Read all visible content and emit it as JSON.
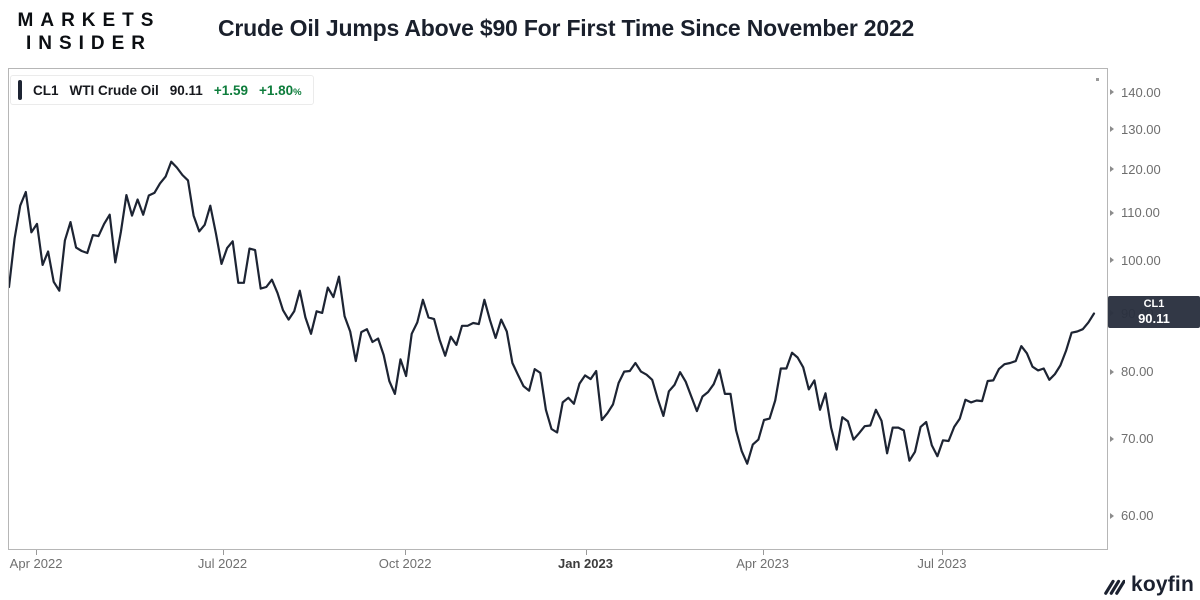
{
  "header": {
    "logo_line1": "MARKETS",
    "logo_line2": "INSIDER",
    "title": "Crude Oil Jumps Above $90 For First Time Since November 2022"
  },
  "legend": {
    "symbol": "CL1",
    "name": "WTI Crude Oil",
    "last": "90.11",
    "change": "+1.59",
    "change_pct": "+1.80",
    "pct_sign": "%",
    "positive_color": "#0e7d3c"
  },
  "price_badge": {
    "symbol": "CL1",
    "price": "90.11"
  },
  "watermark": {
    "text": "koyfin"
  },
  "chart_data": {
    "type": "line",
    "title": "CL1 WTI Crude Oil front-month price",
    "y_scale": "log",
    "ylim": [
      56.0,
      147.0
    ],
    "grid": false,
    "line_color": "#1d2433",
    "axis_text_color": "#6e6e6e",
    "y_ticks": [
      {
        "label": "140.00",
        "value": 140
      },
      {
        "label": "130.00",
        "value": 130
      },
      {
        "label": "120.00",
        "value": 120
      },
      {
        "label": "110.00",
        "value": 110
      },
      {
        "label": "100.00",
        "value": 100
      },
      {
        "label": "90.00",
        "value": 90
      },
      {
        "label": "80.00",
        "value": 80
      },
      {
        "label": "70.00",
        "value": 70
      },
      {
        "label": "60.00",
        "value": 60
      }
    ],
    "x_ticks": [
      {
        "label": "Apr 2022",
        "pos": 0.0255,
        "bold": false
      },
      {
        "label": "Jul 2022",
        "pos": 0.195,
        "bold": false
      },
      {
        "label": "Oct 2022",
        "pos": 0.361,
        "bold": false
      },
      {
        "label": "Jan 2023",
        "pos": 0.525,
        "bold": true
      },
      {
        "label": "Apr 2023",
        "pos": 0.686,
        "bold": false
      },
      {
        "label": "Jul 2023",
        "pos": 0.849,
        "bold": false
      }
    ],
    "last_price": 90.11,
    "series": [
      {
        "name": "CL1 WTI Crude Oil",
        "values": [
          95.0,
          104.7,
          111.8,
          114.9,
          106.0,
          107.8,
          99.3,
          102.0,
          96.0,
          94.3,
          104.3,
          108.2,
          102.8,
          102.1,
          101.7,
          105.4,
          105.2,
          107.8,
          109.8,
          99.8,
          106.1,
          114.2,
          109.6,
          113.2,
          109.8,
          114.1,
          114.7,
          116.9,
          118.5,
          122.1,
          120.7,
          118.9,
          117.6,
          109.6,
          106.2,
          107.6,
          111.8,
          105.8,
          99.5,
          102.7,
          104.1,
          95.8,
          95.8,
          102.6,
          102.3,
          94.7,
          95.0,
          96.4,
          93.9,
          90.7,
          89.0,
          90.5,
          94.3,
          89.4,
          86.5,
          90.5,
          90.2,
          94.9,
          93.1,
          97.0,
          89.6,
          86.9,
          81.9,
          86.8,
          87.3,
          85.1,
          85.7,
          82.9,
          78.7,
          76.7,
          82.2,
          79.5,
          86.5,
          88.5,
          92.6,
          89.4,
          89.1,
          85.5,
          82.8,
          86.0,
          84.6,
          87.9,
          87.9,
          88.4,
          88.2,
          92.6,
          88.9,
          85.8,
          89.0,
          86.9,
          81.6,
          79.7,
          77.9,
          77.2,
          80.6,
          80.0,
          74.3,
          71.5,
          71.0,
          75.4,
          76.1,
          75.2,
          78.3,
          79.6,
          79.0,
          80.3,
          72.8,
          73.8,
          75.1,
          78.4,
          80.2,
          80.3,
          81.6,
          80.2,
          79.7,
          78.9,
          75.9,
          73.4,
          77.1,
          78.1,
          80.1,
          78.6,
          76.3,
          74.1,
          76.3,
          77.0,
          78.2,
          80.5,
          76.7,
          76.7,
          71.3,
          68.4,
          66.7,
          69.3,
          70.0,
          72.8,
          73.0,
          75.7,
          80.7,
          80.7,
          83.3,
          82.5,
          80.9,
          77.4,
          78.8,
          74.3,
          76.8,
          71.7,
          68.6,
          73.2,
          72.6,
          70.0,
          70.9,
          71.9,
          72.0,
          74.3,
          72.7,
          68.1,
          71.7,
          71.7,
          71.3,
          67.1,
          68.3,
          71.8,
          72.5,
          69.2,
          67.7,
          69.9,
          69.8,
          71.8,
          73.0,
          75.8,
          75.4,
          75.7,
          75.6,
          78.7,
          78.8,
          80.6,
          81.4,
          81.6,
          81.9,
          84.4,
          83.2,
          81.0,
          80.4,
          80.7,
          78.9,
          79.8,
          81.2,
          83.6,
          86.7,
          86.9,
          87.3,
          88.5,
          90.1
        ]
      }
    ]
  }
}
